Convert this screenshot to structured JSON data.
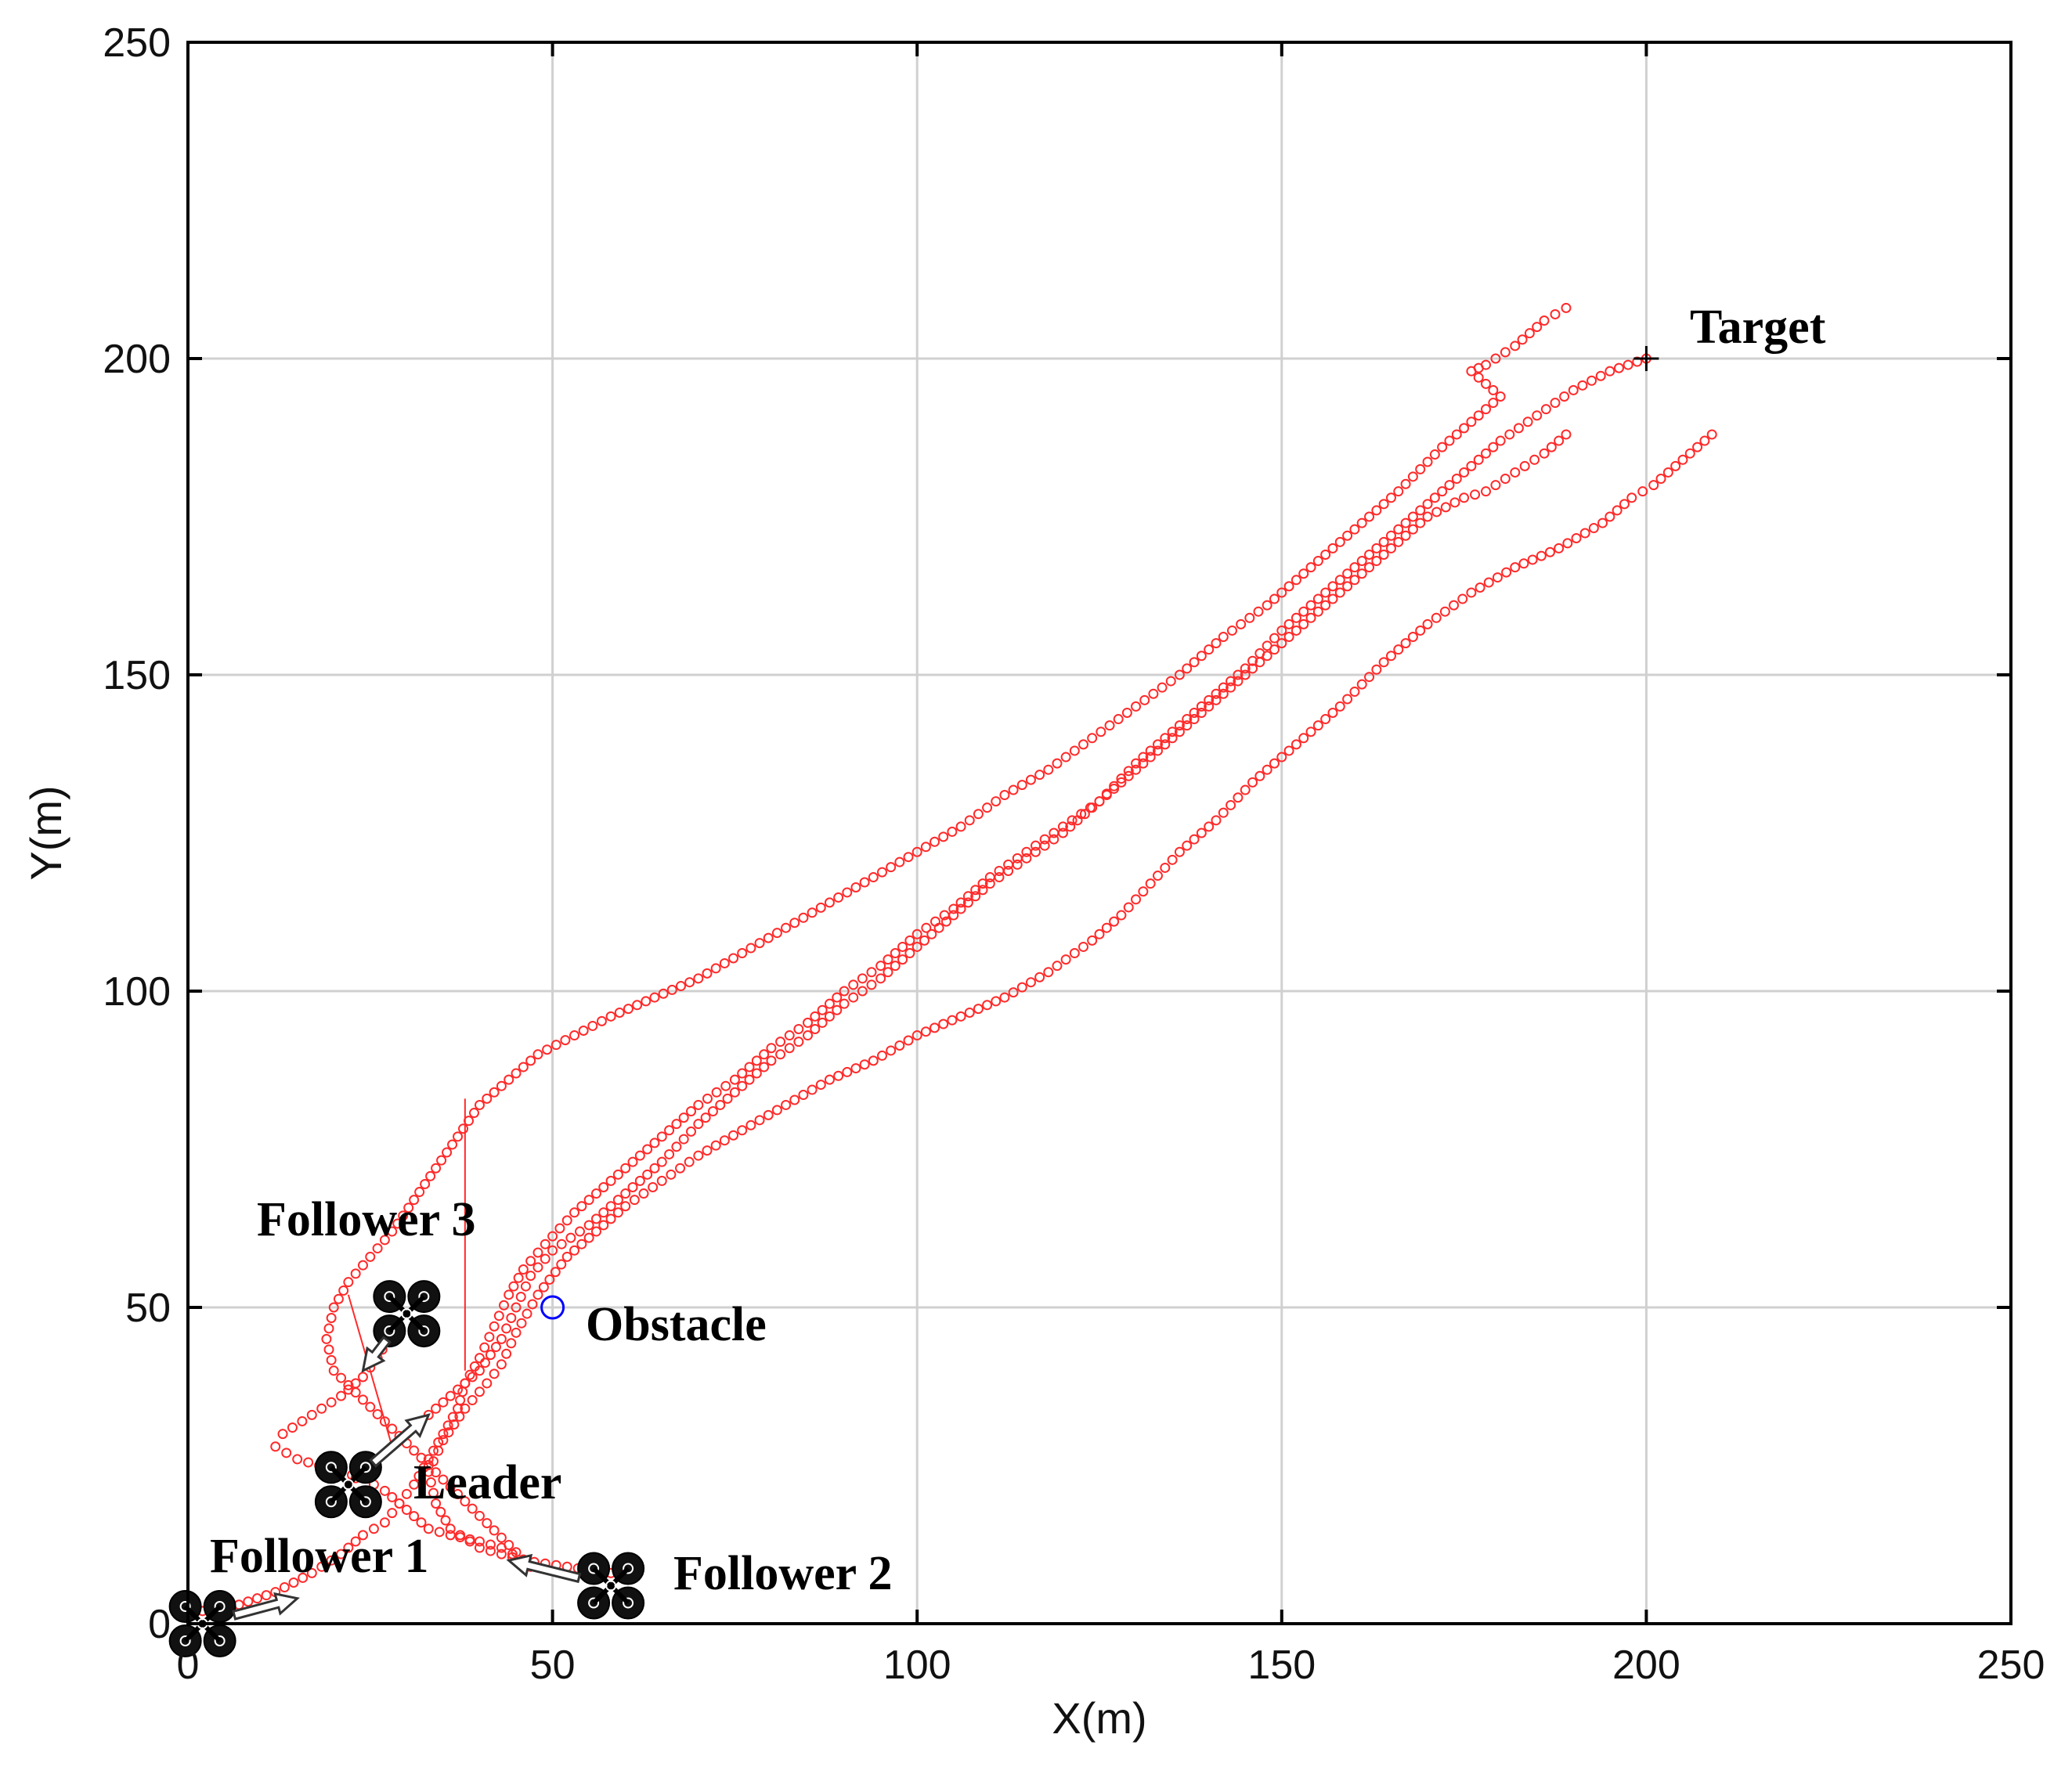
{
  "chart_data": {
    "type": "scatter",
    "title": "",
    "xlabel": "X(m)",
    "ylabel": "Y(m)",
    "xlim": [
      0,
      250
    ],
    "ylim": [
      0,
      250
    ],
    "xticks": [
      0,
      50,
      100,
      150,
      200,
      250
    ],
    "yticks": [
      0,
      50,
      100,
      150,
      200,
      250
    ],
    "grid": true,
    "marker": "open-circle",
    "trajectory_color": "#ff2a2a",
    "series": [
      {
        "name": "Leader",
        "points": [
          [
            22,
            22
          ],
          [
            25,
            25
          ],
          [
            28,
            28
          ],
          [
            32,
            32
          ],
          [
            36,
            36
          ],
          [
            40,
            40
          ],
          [
            43,
            45
          ],
          [
            45,
            50
          ],
          [
            47,
            55
          ],
          [
            50,
            59
          ],
          [
            55,
            63
          ],
          [
            60,
            68
          ],
          [
            65,
            73
          ],
          [
            70,
            79
          ],
          [
            75,
            84
          ],
          [
            80,
            89
          ],
          [
            85,
            93
          ],
          [
            90,
            98
          ],
          [
            95,
            102
          ],
          [
            100,
            107
          ],
          [
            105,
            112
          ],
          [
            110,
            117
          ],
          [
            115,
            121
          ],
          [
            120,
            125
          ],
          [
            125,
            130
          ],
          [
            130,
            136
          ],
          [
            135,
            141
          ],
          [
            140,
            146
          ],
          [
            145,
            151
          ],
          [
            150,
            157
          ],
          [
            155,
            162
          ],
          [
            160,
            167
          ],
          [
            165,
            172
          ],
          [
            170,
            177
          ],
          [
            175,
            182
          ],
          [
            180,
            187
          ],
          [
            185,
            191
          ],
          [
            190,
            195
          ],
          [
            195,
            198
          ],
          [
            200,
            200
          ]
        ]
      },
      {
        "name": "Follower 1",
        "points": [
          [
            2,
            2
          ],
          [
            7,
            3
          ],
          [
            12,
            5
          ],
          [
            17,
            8
          ],
          [
            21,
            11
          ],
          [
            24,
            14
          ],
          [
            27,
            16
          ],
          [
            29,
            19
          ],
          [
            31,
            22
          ],
          [
            33,
            26
          ],
          [
            35,
            30
          ],
          [
            37,
            34
          ],
          [
            38,
            38
          ],
          [
            40,
            42
          ],
          [
            42,
            47
          ],
          [
            44,
            52
          ],
          [
            46,
            56
          ],
          [
            49,
            60
          ],
          [
            53,
            65
          ],
          [
            57,
            69
          ],
          [
            61,
            73
          ],
          [
            65,
            77
          ],
          [
            70,
            82
          ],
          [
            75,
            86
          ],
          [
            80,
            91
          ],
          [
            85,
            95
          ],
          [
            90,
            100
          ],
          [
            95,
            104
          ],
          [
            100,
            109
          ],
          [
            105,
            113
          ],
          [
            110,
            118
          ],
          [
            115,
            122
          ],
          [
            120,
            126
          ],
          [
            125,
            130
          ],
          [
            130,
            135
          ],
          [
            135,
            140
          ],
          [
            140,
            145
          ],
          [
            145,
            150
          ],
          [
            150,
            155
          ],
          [
            155,
            160
          ],
          [
            160,
            165
          ],
          [
            165,
            170
          ],
          [
            170,
            175
          ],
          [
            175,
            178
          ],
          [
            178,
            179
          ],
          [
            182,
            182
          ],
          [
            186,
            185
          ],
          [
            189,
            188
          ]
        ]
      },
      {
        "name": "Follower 2",
        "points": [
          [
            58,
            8
          ],
          [
            52,
            9
          ],
          [
            46,
            10
          ],
          [
            40,
            12
          ],
          [
            36,
            15
          ],
          [
            34,
            19
          ],
          [
            33,
            24
          ],
          [
            35,
            29
          ],
          [
            38,
            34
          ],
          [
            41,
            38
          ],
          [
            43,
            41
          ],
          [
            45,
            46
          ],
          [
            48,
            52
          ],
          [
            52,
            58
          ],
          [
            56,
            62
          ],
          [
            60,
            66
          ],
          [
            65,
            70
          ],
          [
            70,
            74
          ],
          [
            76,
            78
          ],
          [
            82,
            82
          ],
          [
            88,
            86
          ],
          [
            94,
            89
          ],
          [
            100,
            93
          ],
          [
            106,
            96
          ],
          [
            112,
            99
          ],
          [
            118,
            103
          ],
          [
            124,
            108
          ],
          [
            128,
            112
          ],
          [
            132,
            117
          ],
          [
            136,
            122
          ],
          [
            141,
            127
          ],
          [
            146,
            133
          ],
          [
            152,
            139
          ],
          [
            158,
            145
          ],
          [
            164,
            152
          ],
          [
            170,
            158
          ],
          [
            176,
            163
          ],
          [
            182,
            167
          ],
          [
            188,
            170
          ],
          [
            194,
            174
          ],
          [
            198,
            178
          ],
          [
            201,
            180
          ],
          [
            205,
            184
          ],
          [
            209,
            188
          ]
        ]
      },
      {
        "name": "Follower 3",
        "points": [
          [
            28,
            46
          ],
          [
            26,
            42
          ],
          [
            24,
            39
          ],
          [
            21,
            36
          ],
          [
            17,
            33
          ],
          [
            13,
            30
          ],
          [
            12,
            28
          ],
          [
            15,
            26
          ],
          [
            18,
            25
          ],
          [
            21,
            24
          ],
          [
            24,
            23
          ],
          [
            27,
            21
          ],
          [
            29,
            19
          ],
          [
            31,
            17
          ],
          [
            33,
            15
          ],
          [
            36,
            14
          ],
          [
            40,
            13
          ],
          [
            43,
            12
          ],
          [
            46,
            10
          ],
          [
            47,
            9
          ],
          [
            20,
            40
          ],
          [
            19,
            45
          ],
          [
            20,
            50
          ],
          [
            22,
            54
          ],
          [
            25,
            58
          ],
          [
            28,
            62
          ],
          [
            31,
            67
          ],
          [
            34,
            72
          ],
          [
            37,
            77
          ],
          [
            40,
            82
          ],
          [
            44,
            86
          ],
          [
            48,
            90
          ],
          [
            53,
            93
          ],
          [
            58,
            96
          ],
          [
            64,
            99
          ],
          [
            70,
            102
          ],
          [
            76,
            106
          ],
          [
            82,
            110
          ],
          [
            88,
            114
          ],
          [
            94,
            118
          ],
          [
            100,
            122
          ],
          [
            106,
            126
          ],
          [
            112,
            131
          ],
          [
            118,
            135
          ],
          [
            124,
            140
          ],
          [
            130,
            145
          ],
          [
            136,
            150
          ],
          [
            142,
            156
          ],
          [
            148,
            161
          ],
          [
            154,
            167
          ],
          [
            160,
            173
          ],
          [
            166,
            179
          ],
          [
            172,
            186
          ],
          [
            178,
            192
          ],
          [
            180,
            194
          ],
          [
            176,
            198
          ],
          [
            178,
            199
          ],
          [
            182,
            202
          ],
          [
            186,
            206
          ],
          [
            189,
            208
          ]
        ]
      }
    ],
    "connector_lines": [
      [
        [
          38,
          40
        ],
        [
          38,
          83
        ]
      ],
      [
        [
          28,
          28
        ],
        [
          22,
          52
        ]
      ]
    ],
    "obstacle": {
      "label": "Obstacle",
      "x": 50,
      "y": 50,
      "color": "#0000ff"
    },
    "target": {
      "label": "Target",
      "x": 200,
      "y": 200
    },
    "agents": [
      {
        "label": "Leader",
        "x": 22,
        "y": 22,
        "heading": [
          33,
          33
        ]
      },
      {
        "label": "Follower 1",
        "x": 2,
        "y": 0,
        "heading": [
          15,
          4
        ]
      },
      {
        "label": "Follower 2",
        "x": 58,
        "y": 6,
        "heading": [
          44,
          10
        ]
      },
      {
        "label": "Follower 3",
        "x": 30,
        "y": 49,
        "heading": [
          24,
          40
        ]
      }
    ],
    "annotations": [
      {
        "text": "Target"
      },
      {
        "text": "Obstacle"
      },
      {
        "text": "Leader"
      },
      {
        "text": "Follower 1"
      },
      {
        "text": "Follower 2"
      },
      {
        "text": "Follower 3"
      }
    ]
  }
}
